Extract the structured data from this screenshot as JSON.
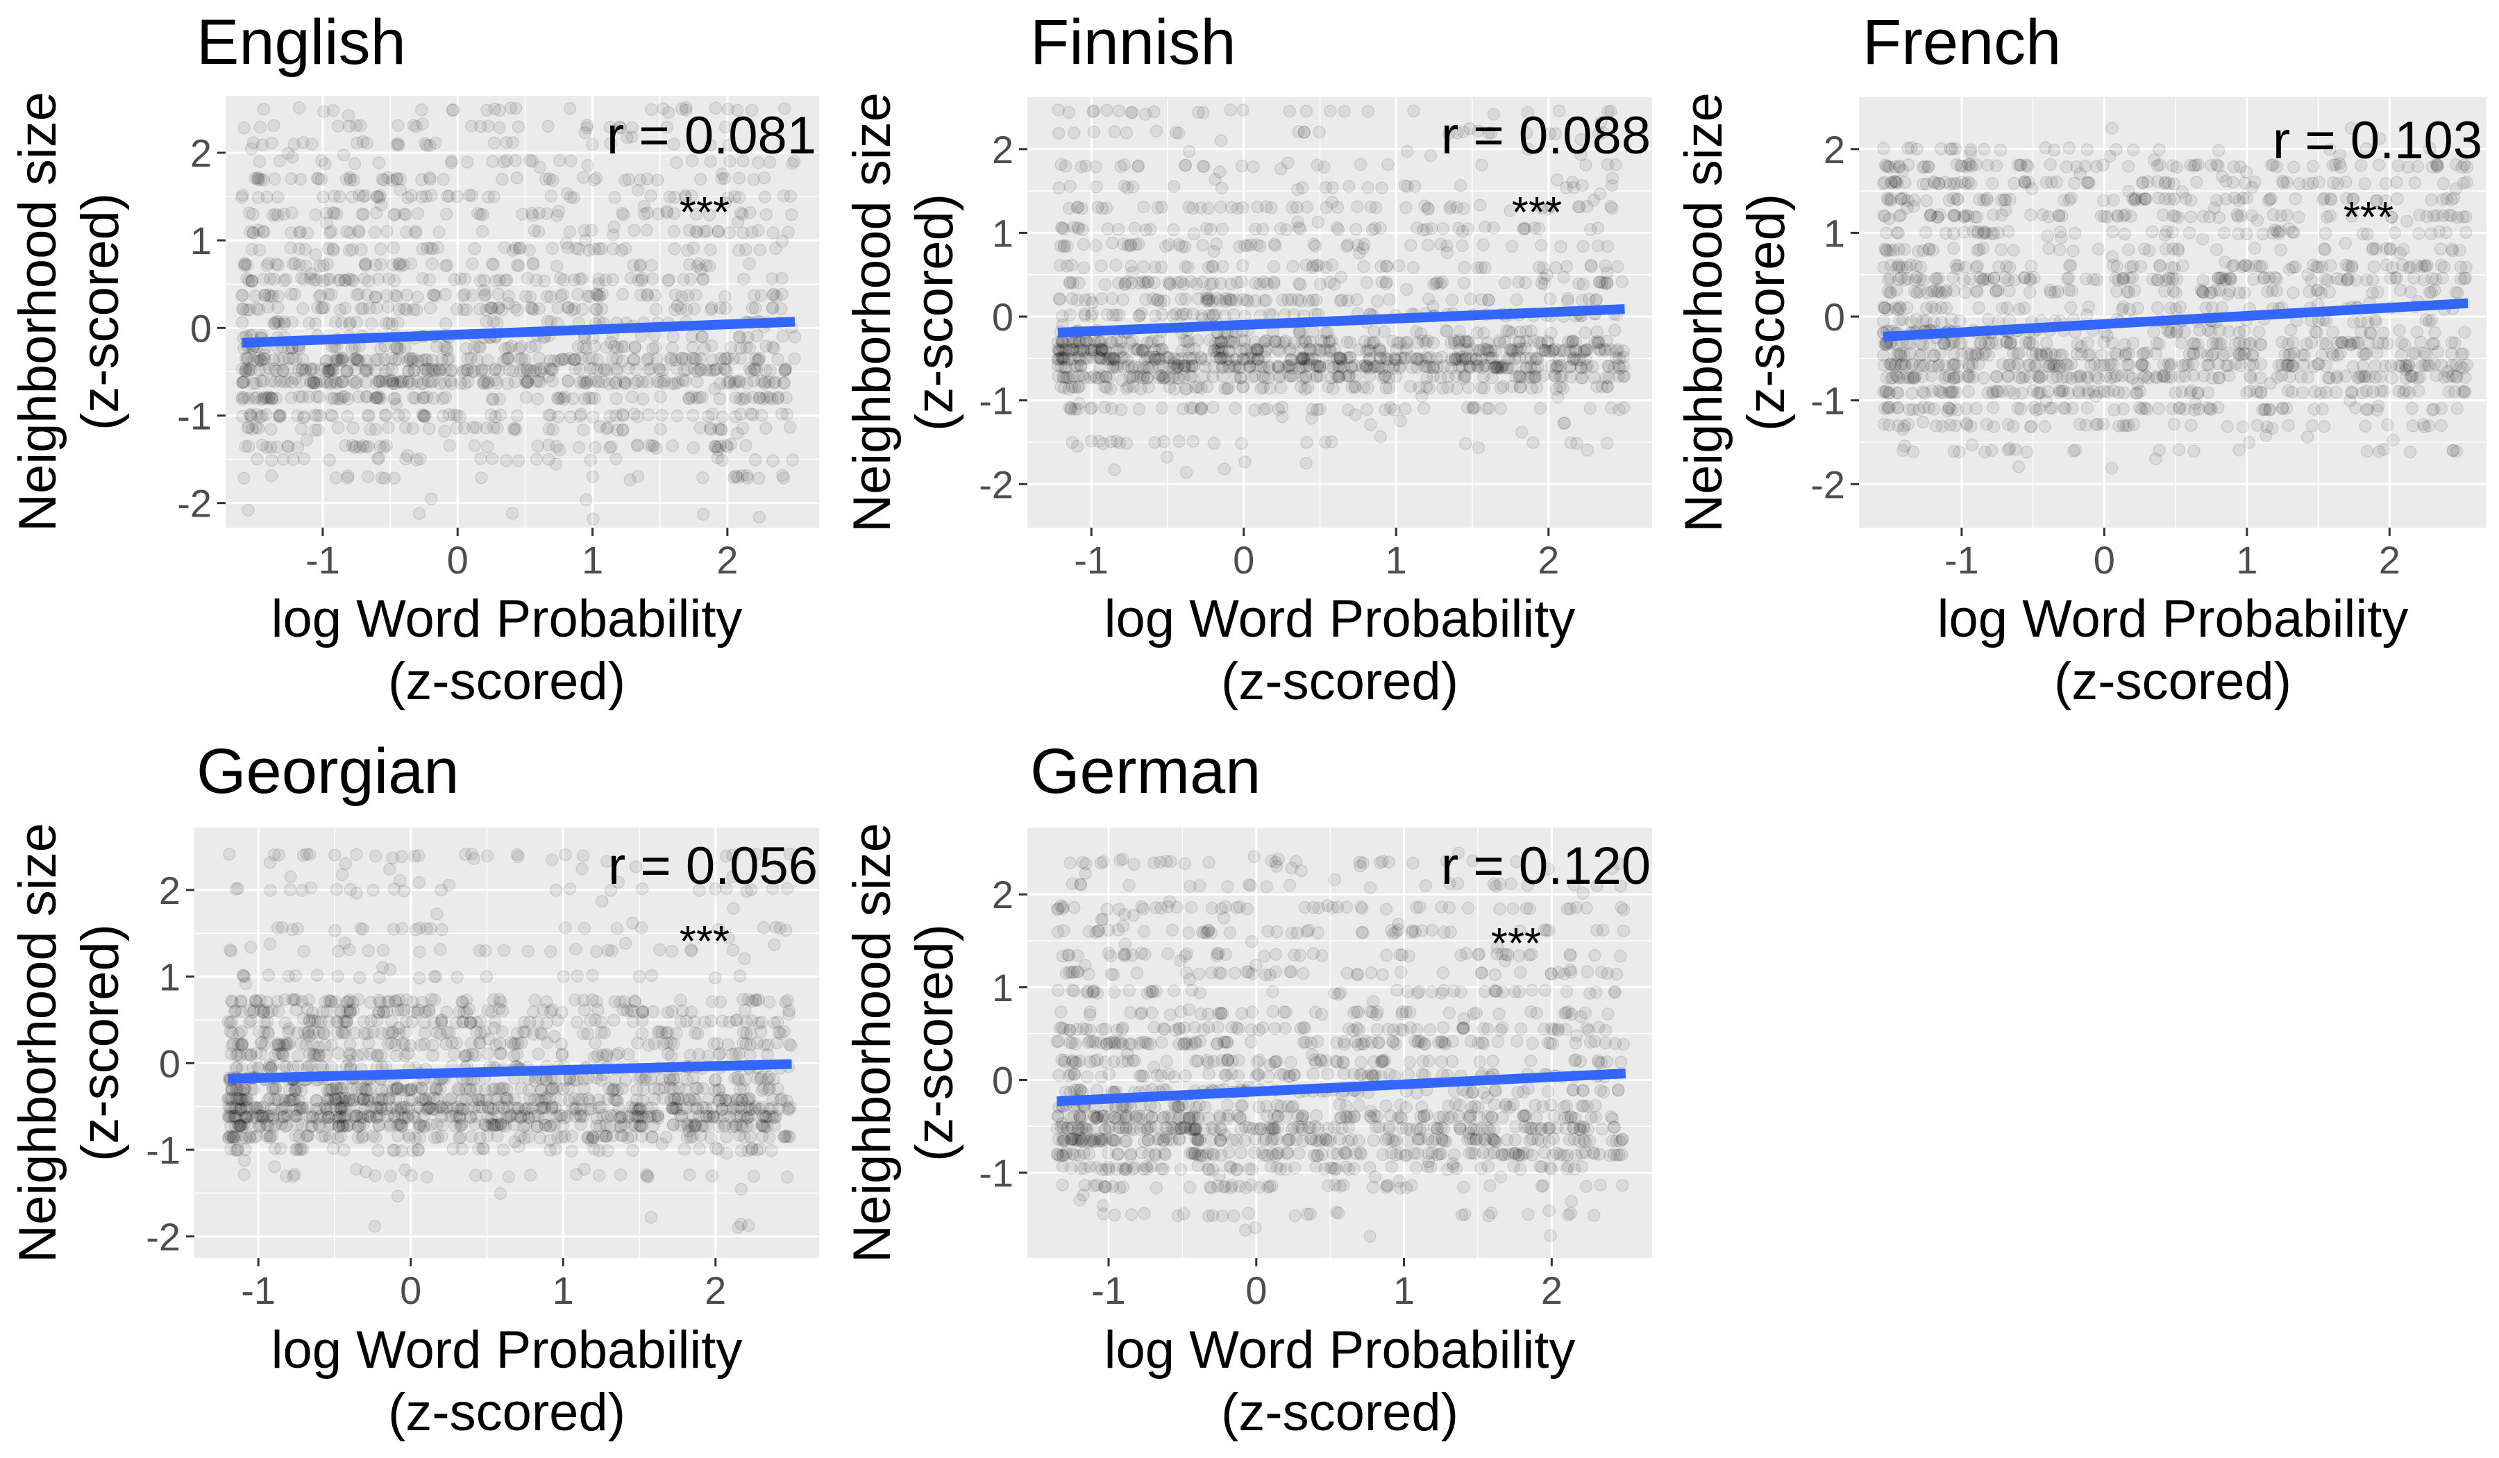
{
  "colors": {
    "panel_background": "#ebebeb",
    "grid": "#ffffff",
    "fit_line": "#3366ff",
    "points": "#000000",
    "tick_text": "#4d4d4d"
  },
  "chart_data": [
    {
      "type": "scatter",
      "title": "English",
      "xlabel": [
        "log Word Probability",
        "(z-scored)"
      ],
      "ylabel": [
        "Neighborhood size",
        "(z-scored)"
      ],
      "xlim": [
        -1.72,
        2.68
      ],
      "ylim": [
        -2.28,
        2.65
      ],
      "x_ticks": [
        -1,
        0,
        1,
        2
      ],
      "y_ticks": [
        -2,
        -1,
        0,
        1,
        2
      ],
      "x_tick_labels": [
        "-1",
        "0",
        "1",
        "2"
      ],
      "y_tick_labels": [
        "-2",
        "-1",
        "0",
        "1",
        "2"
      ],
      "annotation": "r = 0.081",
      "significance": "***",
      "fit_line": {
        "x": [
          -1.6,
          2.5
        ],
        "y": [
          -0.17,
          0.07
        ]
      },
      "scatter_x_range": [
        -1.6,
        2.5
      ],
      "scatter_y_range": [
        -2.2,
        2.5
      ],
      "point_levels": [
        -1.7,
        -1.5,
        -1.35,
        -1.15,
        -1.0,
        -0.8,
        -0.62,
        -0.48,
        -0.36,
        -0.22,
        -0.1,
        0.06,
        0.22,
        0.37,
        0.55,
        0.72,
        0.9,
        1.1,
        1.3,
        1.5,
        1.7,
        1.9,
        2.1,
        2.3,
        2.5
      ],
      "point_weights": [
        1,
        1,
        2,
        2,
        3,
        4,
        6,
        6,
        5,
        3,
        2,
        2,
        3,
        3,
        3,
        2,
        2,
        2,
        2,
        2,
        2,
        1,
        1,
        1,
        1
      ]
    },
    {
      "type": "scatter",
      "title": "Finnish",
      "xlabel": [
        "log Word Probability",
        "(z-scored)"
      ],
      "ylabel": [
        "Neighborhood size",
        "(z-scored)"
      ],
      "xlim": [
        -1.42,
        2.68
      ],
      "ylim": [
        -2.52,
        2.62
      ],
      "x_ticks": [
        -1,
        0,
        1,
        2
      ],
      "y_ticks": [
        -2,
        -1,
        0,
        1,
        2
      ],
      "x_tick_labels": [
        "-1",
        "0",
        "1",
        "2"
      ],
      "y_tick_labels": [
        "-2",
        "-1",
        "0",
        "1",
        "2"
      ],
      "annotation": "r = 0.088",
      "significance": "***",
      "fit_line": {
        "x": [
          -1.22,
          2.5
        ],
        "y": [
          -0.19,
          0.09
        ]
      },
      "scatter_x_range": [
        -1.22,
        2.5
      ],
      "scatter_y_range": [
        -1.9,
        2.45
      ],
      "point_levels": [
        -1.5,
        -1.1,
        -0.85,
        -0.72,
        -0.6,
        -0.5,
        -0.4,
        -0.3,
        -0.18,
        0.02,
        0.2,
        0.4,
        0.6,
        0.85,
        1.05,
        1.3,
        1.55,
        1.8,
        2.2,
        2.45
      ],
      "point_weights": [
        1,
        2,
        3,
        5,
        7,
        7,
        6,
        5,
        2,
        3,
        3,
        3,
        2,
        2,
        2,
        2,
        1,
        1,
        1,
        1
      ]
    },
    {
      "type": "scatter",
      "title": "French",
      "xlabel": [
        "log Word Probability",
        "(z-scored)"
      ],
      "ylabel": [
        "Neighborhood size",
        "(z-scored)"
      ],
      "xlim": [
        -1.72,
        2.68
      ],
      "ylim": [
        -2.52,
        2.62
      ],
      "x_ticks": [
        -1,
        0,
        1,
        2
      ],
      "y_ticks": [
        -2,
        -1,
        0,
        1,
        2
      ],
      "x_tick_labels": [
        "-1",
        "0",
        "1",
        "2"
      ],
      "y_tick_labels": [
        "-2",
        "-1",
        "0",
        "1",
        "2"
      ],
      "annotation": "r = 0.103",
      "significance": "***",
      "fit_line": {
        "x": [
          -1.55,
          2.55
        ],
        "y": [
          -0.24,
          0.16
        ]
      },
      "scatter_x_range": [
        -1.55,
        2.55
      ],
      "scatter_y_range": [
        -1.9,
        2.3
      ],
      "point_levels": [
        -1.6,
        -1.3,
        -1.1,
        -0.9,
        -0.72,
        -0.58,
        -0.45,
        -0.32,
        -0.18,
        -0.05,
        0.1,
        0.3,
        0.45,
        0.6,
        0.8,
        1.0,
        1.2,
        1.4,
        1.6,
        1.8,
        2.0
      ],
      "point_weights": [
        1,
        2,
        3,
        4,
        5,
        5,
        4,
        4,
        3,
        2,
        2,
        3,
        4,
        3,
        2,
        2,
        3,
        3,
        3,
        3,
        1
      ]
    },
    {
      "type": "scatter",
      "title": "Georgian",
      "xlabel": [
        "log Word Probability",
        "(z-scored)"
      ],
      "ylabel": [
        "Neighborhood size",
        "(z-scored)"
      ],
      "xlim": [
        -1.42,
        2.68
      ],
      "ylim": [
        -2.25,
        2.72
      ],
      "x_ticks": [
        -1,
        0,
        1,
        2
      ],
      "y_ticks": [
        -2,
        -1,
        0,
        1,
        2
      ],
      "x_tick_labels": [
        "-1",
        "0",
        "1",
        "2"
      ],
      "y_tick_labels": [
        "-2",
        "-1",
        "0",
        "1",
        "2"
      ],
      "annotation": "r = 0.056",
      "significance": "***",
      "fit_line": {
        "x": [
          -1.2,
          2.5
        ],
        "y": [
          -0.18,
          -0.01
        ]
      },
      "scatter_x_range": [
        -1.2,
        2.5
      ],
      "scatter_y_range": [
        -2.0,
        2.45
      ],
      "point_levels": [
        -1.3,
        -1.0,
        -0.85,
        -0.72,
        -0.62,
        -0.52,
        -0.42,
        -0.3,
        -0.18,
        -0.05,
        0.1,
        0.22,
        0.35,
        0.48,
        0.6,
        0.72,
        1.0,
        1.3,
        1.55,
        2.0,
        2.4
      ],
      "point_weights": [
        1,
        2,
        4,
        6,
        7,
        7,
        6,
        5,
        4,
        3,
        3,
        3,
        3,
        3,
        3,
        3,
        1,
        1,
        1,
        1,
        1
      ]
    },
    {
      "type": "scatter",
      "title": "German",
      "xlabel": [
        "log Word Probability",
        "(z-scored)"
      ],
      "ylabel": [
        "Neighborhood size",
        "(z-scored)"
      ],
      "xlim": [
        -1.55,
        2.68
      ],
      "ylim": [
        -1.92,
        2.72
      ],
      "x_ticks": [
        -1,
        0,
        1,
        2
      ],
      "y_ticks": [
        -1,
        0,
        1,
        2
      ],
      "x_tick_labels": [
        "-1",
        "0",
        "1",
        "2"
      ],
      "y_tick_labels": [
        "-1",
        "0",
        "1",
        "2"
      ],
      "annotation": "r = 0.120",
      "significance": "***",
      "fit_line": {
        "x": [
          -1.35,
          2.5
        ],
        "y": [
          -0.23,
          0.07
        ]
      },
      "scatter_x_range": [
        -1.35,
        2.5
      ],
      "scatter_y_range": [
        -1.75,
        2.45
      ],
      "point_levels": [
        -1.45,
        -1.15,
        -0.95,
        -0.8,
        -0.65,
        -0.52,
        -0.4,
        -0.28,
        -0.12,
        0.05,
        0.2,
        0.4,
        0.55,
        0.72,
        0.95,
        1.15,
        1.35,
        1.6,
        1.85,
        2.1,
        2.35
      ],
      "point_weights": [
        1,
        2,
        3,
        5,
        6,
        6,
        5,
        3,
        3,
        3,
        3,
        4,
        3,
        2,
        2,
        2,
        2,
        2,
        2,
        1,
        1
      ]
    }
  ]
}
